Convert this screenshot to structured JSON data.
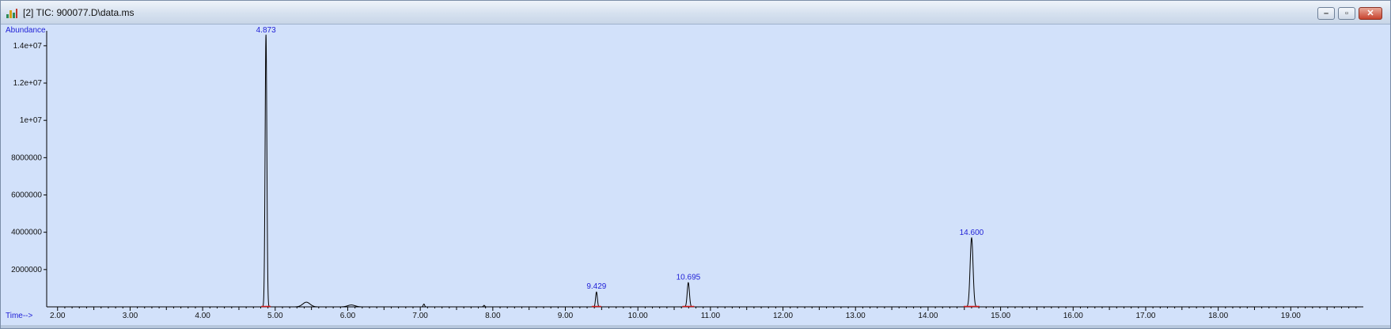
{
  "window": {
    "title": "[2] TIC: 900077.D\\data.ms",
    "buttons": {
      "minimize": "–",
      "restore": "▫",
      "close": "✕"
    }
  },
  "chart_data": {
    "type": "line",
    "ylabel": "Abundance",
    "xlabel": "Time-->",
    "xlim": [
      1.85,
      20.0
    ],
    "ylim": [
      0,
      14800000
    ],
    "x_ticks": [
      "2.00",
      "3.00",
      "4.00",
      "5.00",
      "6.00",
      "7.00",
      "8.00",
      "9.00",
      "10.00",
      "11.00",
      "12.00",
      "13.00",
      "14.00",
      "15.00",
      "16.00",
      "17.00",
      "18.00",
      "19.00"
    ],
    "y_ticks": [
      "2000000",
      "4000000",
      "6000000",
      "8000000",
      "1e+07",
      "1.2e+07",
      "1.4e+07"
    ],
    "y_tick_values": [
      2000000,
      4000000,
      6000000,
      8000000,
      10000000,
      12000000,
      14000000
    ],
    "peaks": [
      {
        "label": "4.873",
        "rt": 4.873,
        "height": 14600000,
        "width": 0.012
      },
      {
        "label": "9.429",
        "rt": 9.429,
        "height": 800000,
        "width": 0.012
      },
      {
        "label": "10.695",
        "rt": 10.695,
        "height": 1300000,
        "width": 0.015
      },
      {
        "label": "14.600",
        "rt": 14.6,
        "height": 3700000,
        "width": 0.02
      }
    ],
    "minor_bumps": [
      {
        "rt": 5.43,
        "height": 250000,
        "width": 0.05
      },
      {
        "rt": 6.05,
        "height": 100000,
        "width": 0.05
      },
      {
        "rt": 7.05,
        "height": 150000,
        "width": 0.01
      },
      {
        "rt": 7.88,
        "height": 80000,
        "width": 0.01
      }
    ],
    "colors": {
      "background": "#d2e1fa",
      "trace": "#000000",
      "peak_label": "#1f1fd6",
      "baseline_marker": "#d11a1a"
    }
  }
}
